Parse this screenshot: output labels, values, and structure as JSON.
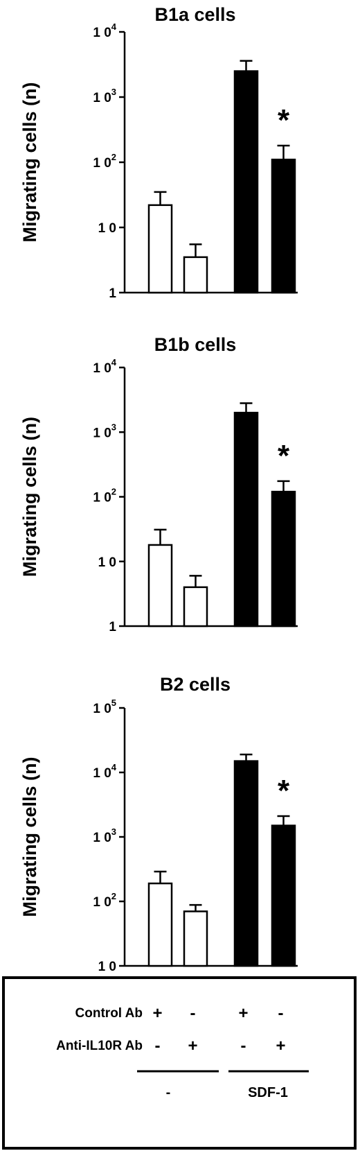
{
  "chart_data": [
    {
      "type": "bar",
      "title": "B1a cells",
      "ylabel": "Migrating cells (n)",
      "yscale": "log",
      "ylim": [
        1,
        10000
      ],
      "ytick_labels": [
        {
          "base": "1",
          "exp": ""
        },
        {
          "base": "1 0",
          "exp": ""
        },
        {
          "base": "1 0",
          "exp": "2"
        },
        {
          "base": "1 0",
          "exp": "3"
        },
        {
          "base": "1 0",
          "exp": "4"
        }
      ],
      "ytick_values": [
        1,
        10,
        100,
        1000,
        10000
      ],
      "categories": [
        "Control Ab / -",
        "Anti-IL10R Ab / -",
        "Control Ab / SDF-1",
        "Anti-IL10R Ab / SDF-1"
      ],
      "values": [
        22,
        3.5,
        2500,
        110
      ],
      "errors_upper": [
        35,
        5.5,
        3600,
        180
      ],
      "fill": [
        "open",
        "open",
        "filled",
        "filled"
      ],
      "significance_markers": [
        "",
        "",
        "",
        "*"
      ]
    },
    {
      "type": "bar",
      "title": "B1b cells",
      "ylabel": "Migrating cells (n)",
      "yscale": "log",
      "ylim": [
        1,
        10000
      ],
      "ytick_labels": [
        {
          "base": "1",
          "exp": ""
        },
        {
          "base": "1 0",
          "exp": ""
        },
        {
          "base": "1 0",
          "exp": "2"
        },
        {
          "base": "1 0",
          "exp": "3"
        },
        {
          "base": "1 0",
          "exp": "4"
        }
      ],
      "ytick_values": [
        1,
        10,
        100,
        1000,
        10000
      ],
      "categories": [
        "Control Ab / -",
        "Anti-IL10R Ab / -",
        "Control Ab / SDF-1",
        "Anti-IL10R Ab / SDF-1"
      ],
      "values": [
        18,
        4,
        2000,
        120
      ],
      "errors_upper": [
        31,
        6,
        2800,
        175
      ],
      "fill": [
        "open",
        "open",
        "filled",
        "filled"
      ],
      "significance_markers": [
        "",
        "",
        "",
        "*"
      ]
    },
    {
      "type": "bar",
      "title": "B2 cells",
      "ylabel": "Migrating cells (n)",
      "yscale": "log",
      "ylim": [
        10,
        100000
      ],
      "ytick_labels": [
        {
          "base": "1 0",
          "exp": ""
        },
        {
          "base": "1 0",
          "exp": "2"
        },
        {
          "base": "1 0",
          "exp": "3"
        },
        {
          "base": "1 0",
          "exp": "4"
        },
        {
          "base": "1 0",
          "exp": "5"
        }
      ],
      "ytick_values": [
        10,
        100,
        1000,
        10000,
        100000
      ],
      "categories": [
        "Control Ab / -",
        "Anti-IL10R Ab / -",
        "Control Ab / SDF-1",
        "Anti-IL10R Ab / SDF-1"
      ],
      "values": [
        190,
        70,
        15000,
        1500
      ],
      "errors_upper": [
        290,
        88,
        19000,
        2100
      ],
      "fill": [
        "open",
        "open",
        "filled",
        "filled"
      ],
      "significance_markers": [
        "",
        "",
        "",
        "*"
      ]
    }
  ],
  "conditions_table": {
    "rows": [
      {
        "label": "Control Ab",
        "signs": [
          "+",
          "-",
          "+",
          "-"
        ]
      },
      {
        "label": "Anti-IL10R Ab",
        "signs": [
          "-",
          "+",
          "-",
          "+"
        ]
      }
    ],
    "groups": [
      {
        "label": "-"
      },
      {
        "label": "SDF-1"
      }
    ]
  }
}
